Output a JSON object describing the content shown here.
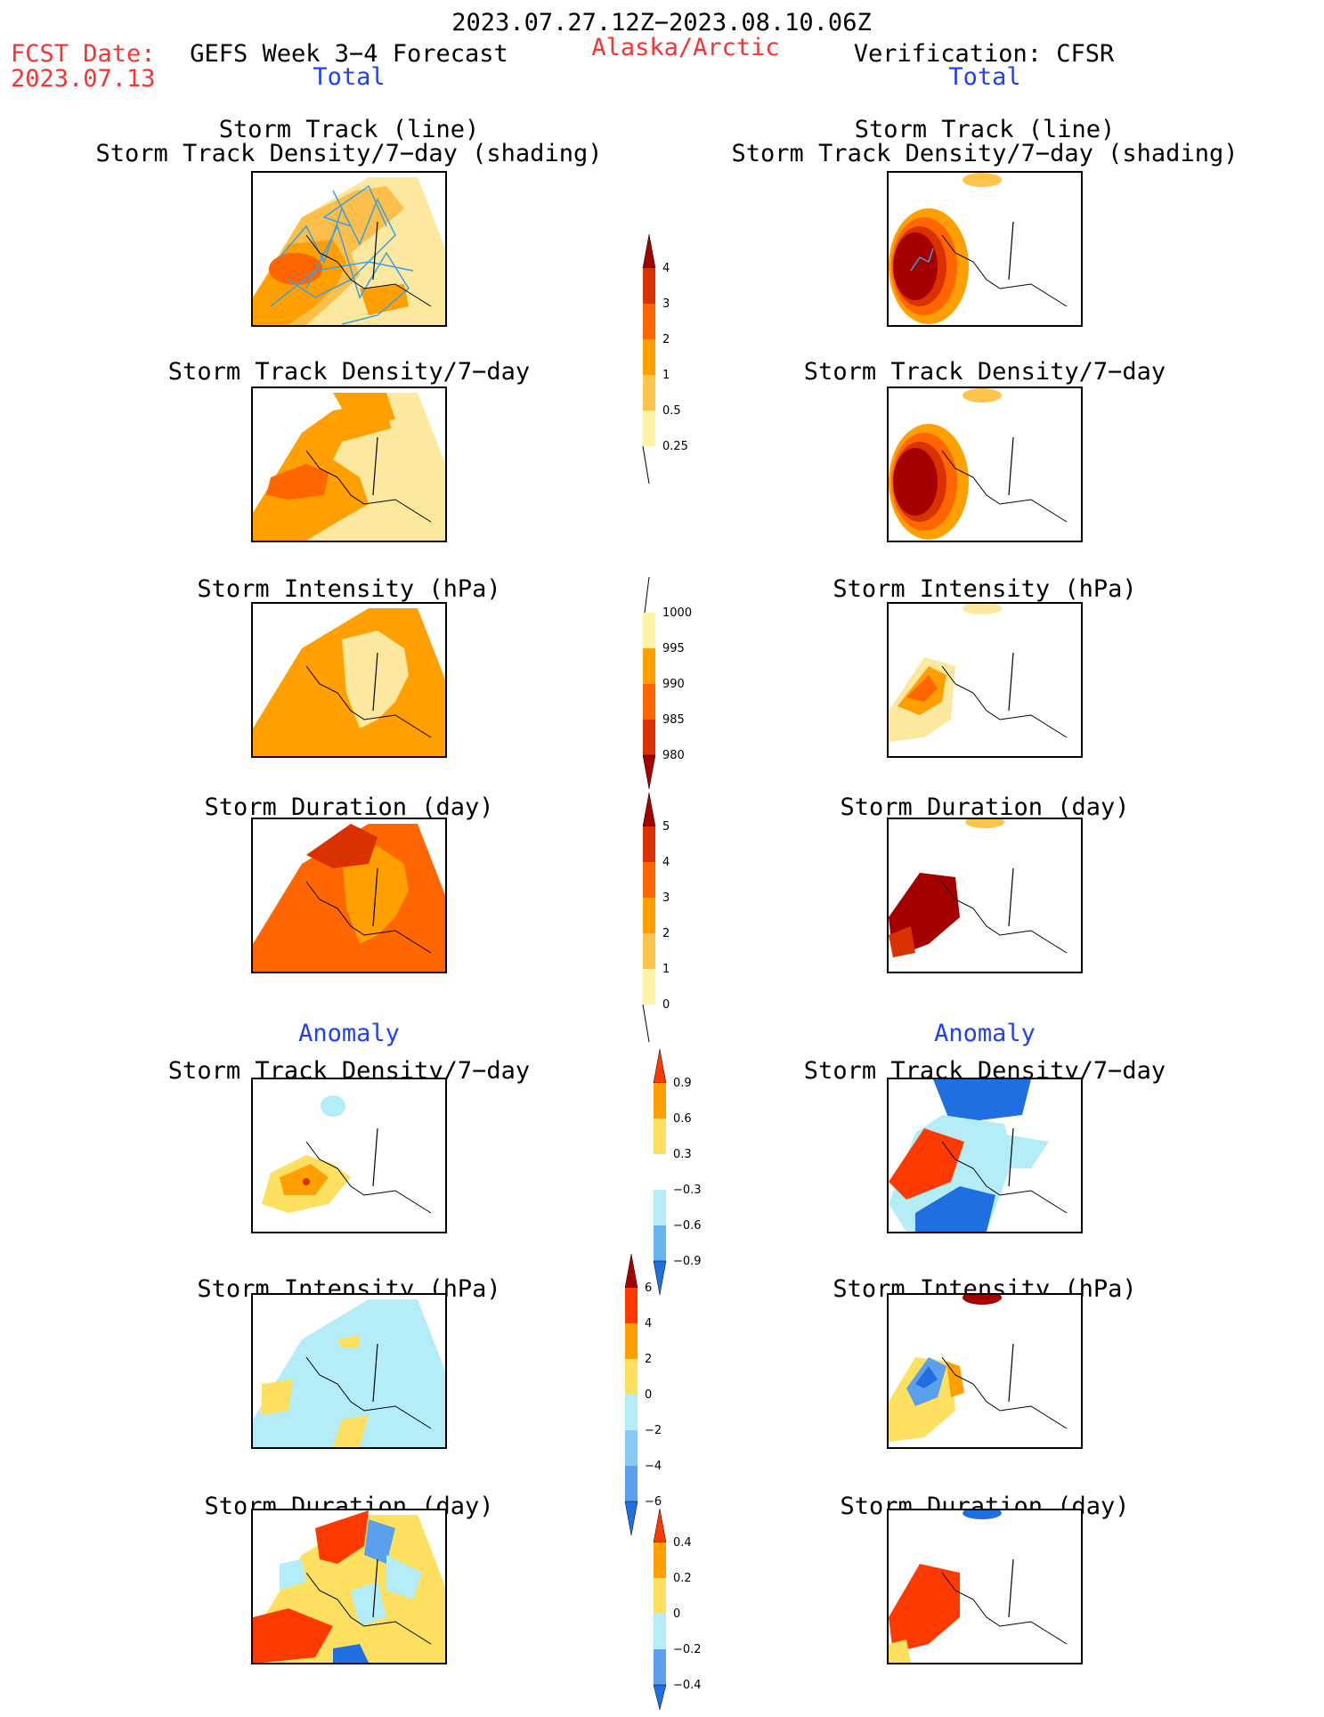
{
  "header": {
    "period": "2023.07.27.12Z−2023.08.10.06Z",
    "fcst_date_label": "FCST Date:",
    "fcst_date_value": "2023.07.13",
    "model": "GEFS Week 3−4 Forecast",
    "region": "Alaska/Arctic",
    "verification": "Verification: CFSR",
    "left_section": "Total",
    "right_section": "Total"
  },
  "titles": {
    "track_line": "Storm Track (line)",
    "track_density_shading": "Storm Track Density/7−day (shading)",
    "track_density": "Storm Track Density/7−day",
    "intensity": "Storm Intensity (hPa)",
    "duration": "Storm Duration (day)",
    "anomaly": "Anomaly"
  },
  "colorbars": {
    "density": {
      "labels": [
        "4",
        "3",
        "2",
        "1",
        "0.5",
        "0.25"
      ],
      "colors": [
        "#a50000",
        "#d93200",
        "#ff6600",
        "#ff9f00",
        "#fdc34a",
        "#fff3a6"
      ]
    },
    "intensity": {
      "labels": [
        "1000",
        "995",
        "990",
        "985",
        "980"
      ],
      "colors": [
        "#fff3a6",
        "#ff9f00",
        "#ff6600",
        "#d93200",
        "#a50000"
      ]
    },
    "duration": {
      "labels": [
        "5",
        "4",
        "3",
        "2",
        "1",
        "0"
      ],
      "colors": [
        "#a50000",
        "#d93200",
        "#ff6600",
        "#ff9f00",
        "#fdc34a",
        "#fff3a6"
      ]
    },
    "anom_density": {
      "labels": [
        "0.9",
        "0.6",
        "0.3",
        "−0.3",
        "−0.6",
        "−0.9"
      ],
      "colors": [
        "#ff3a00",
        "#ff9f00",
        "#fde060",
        "#ffffff",
        "#b4ecf8",
        "#66b5f0",
        "#1f6fe0"
      ]
    },
    "anom_intensity": {
      "labels": [
        "6",
        "4",
        "2",
        "0",
        "−2",
        "−4",
        "−6"
      ],
      "colors": [
        "#a50000",
        "#ff3a00",
        "#ff9f00",
        "#fde060",
        "#b4ecf8",
        "#88c8f4",
        "#5aa0ee",
        "#1f6fe0"
      ]
    },
    "anom_duration": {
      "labels": [
        "0.4",
        "0.2",
        "0",
        "−0.2",
        "−0.4"
      ],
      "colors": [
        "#ff3a00",
        "#ff9f00",
        "#fde060",
        "#b4ecf8",
        "#5aa0ee",
        "#1f6fe0"
      ]
    }
  }
}
